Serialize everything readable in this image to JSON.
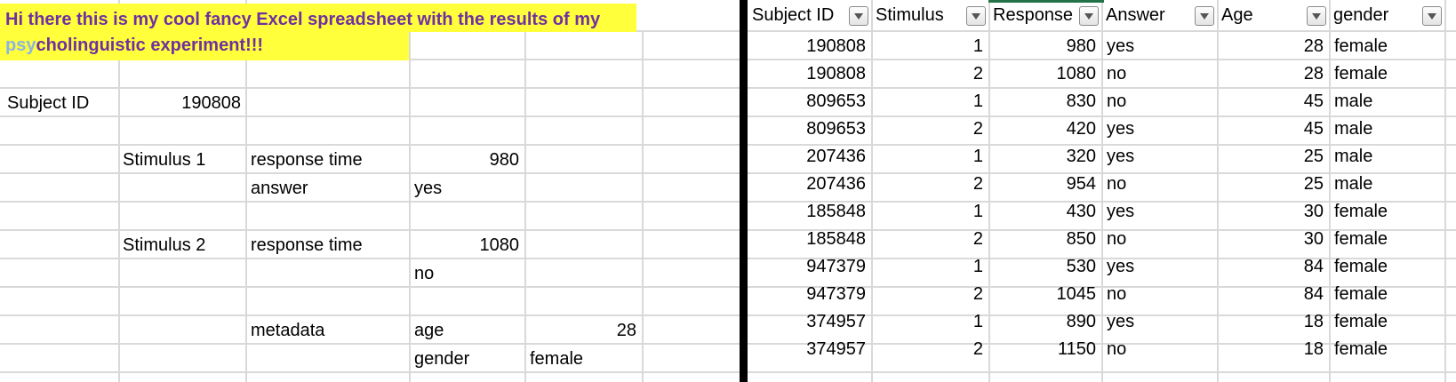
{
  "left": {
    "title_line1": "Hi there this is my cool fancy Excel spreadsheet with the results of my",
    "title_line2_part1": "psy",
    "title_line2_part2": "cholinguistic experiment!!!",
    "subject_label": "Subject ID",
    "subject_id": "190808",
    "stim1_label": "Stimulus 1",
    "stim1_rt_label": "response time",
    "stim1_rt": "980",
    "stim1_answer_label": "answer",
    "stim1_answer": "yes",
    "stim2_label": "Stimulus 2",
    "stim2_rt_label": "response time",
    "stim2_rt": "1080",
    "stim2_answer": "no",
    "metadata_label": "metadata",
    "age_label": "age",
    "age": "28",
    "gender_label": "gender",
    "gender": "female"
  },
  "right": {
    "headers": [
      "Subject ID",
      "Stimulus",
      "Response",
      "Answer",
      "Age",
      "gender"
    ],
    "rows": [
      [
        "190808",
        "1",
        "980",
        "yes",
        "28",
        "female"
      ],
      [
        "190808",
        "2",
        "1080",
        "no",
        "28",
        "female"
      ],
      [
        "809653",
        "1",
        "830",
        "no",
        "45",
        "male"
      ],
      [
        "809653",
        "2",
        "420",
        "yes",
        "45",
        "male"
      ],
      [
        "207436",
        "1",
        "320",
        "yes",
        "25",
        "male"
      ],
      [
        "207436",
        "2",
        "954",
        "no",
        "25",
        "male"
      ],
      [
        "185848",
        "1",
        "430",
        "yes",
        "30",
        "female"
      ],
      [
        "185848",
        "2",
        "850",
        "no",
        "30",
        "female"
      ],
      [
        "947379",
        "1",
        "530",
        "yes",
        "84",
        "female"
      ],
      [
        "947379",
        "2",
        "1045",
        "no",
        "84",
        "female"
      ],
      [
        "374957",
        "1",
        "890",
        "yes",
        "18",
        "female"
      ],
      [
        "374957",
        "2",
        "1150",
        "no",
        "18",
        "female"
      ]
    ]
  }
}
